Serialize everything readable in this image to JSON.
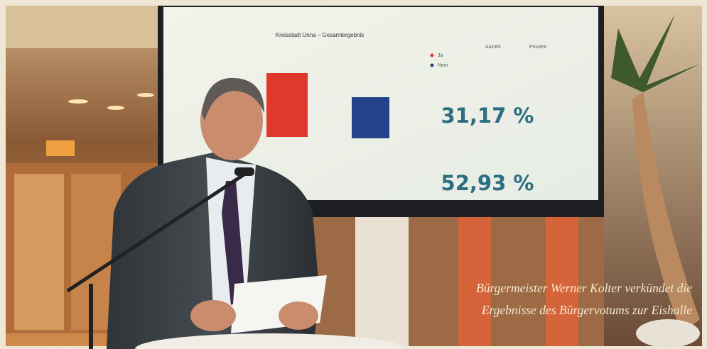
{
  "screen": {
    "title": "Kreisstadt Unna – Gesamtergebnis",
    "table_headers": [
      "Anzahl",
      "Prozent"
    ],
    "legend": [
      "Ja",
      "Nein"
    ],
    "turnout": "31,17 %",
    "result": "52,93 %"
  },
  "caption": [
    "Bürgermeister Werner Kolter verkündet die",
    "Ergebnisse des Bürgervotums zur Eishalle"
  ]
}
